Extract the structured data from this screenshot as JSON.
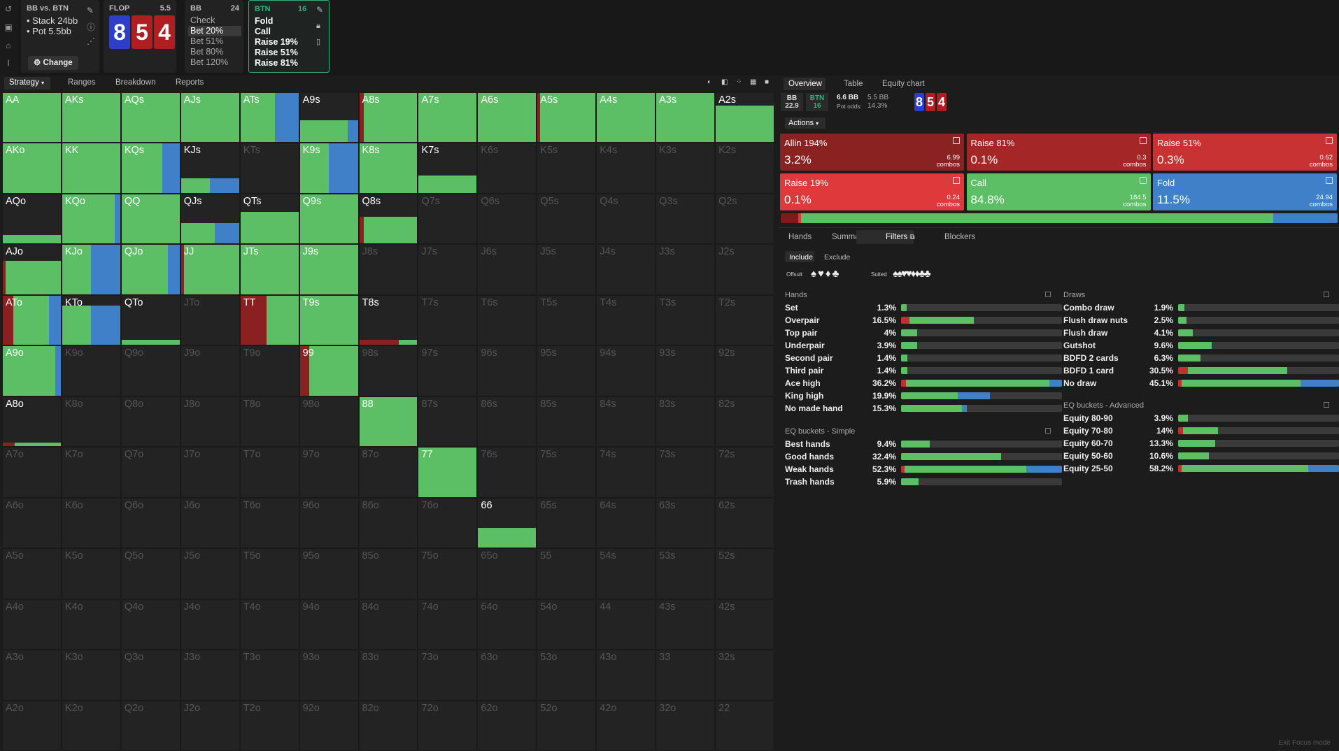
{
  "header": {
    "matchup": "BB vs. BTN",
    "stack": "Stack 24bb",
    "pot": "Pot 5.5bb",
    "change_label": "Change",
    "flop_label": "FLOP",
    "flop_pot": "5.5",
    "board": [
      "8",
      "5",
      "4"
    ],
    "bb_panel": {
      "title": "BB",
      "num": "24",
      "options": [
        "Check",
        "Bet 20%",
        "Bet 51%",
        "Bet 80%",
        "Bet 120%"
      ],
      "selected": "Bet 20%"
    },
    "btn_panel": {
      "title": "BTN",
      "num": "16",
      "options": [
        "Fold",
        "Call",
        "Raise 19%",
        "Raise 51%",
        "Raise 81%"
      ]
    }
  },
  "tabs": {
    "strategy": "Strategy",
    "ranges": "Ranges",
    "breakdown": "Breakdown",
    "reports": "Reports"
  },
  "colors": {
    "green": "#5cbf65",
    "blue": "#3f80c8",
    "red": "#8b2020",
    "dark_red": "#7a1c1c"
  },
  "grid": [
    [
      "AA",
      "AKs",
      "AQs",
      "AJs",
      "ATs",
      "A9s",
      "A8s",
      "A7s",
      "A6s",
      "A5s",
      "A4s",
      "A3s",
      "A2s"
    ],
    [
      "AKo",
      "KK",
      "KQs",
      "KJs",
      "KTs",
      "K9s",
      "K8s",
      "K7s",
      "K6s",
      "K5s",
      "K4s",
      "K3s",
      "K2s"
    ],
    [
      "AQo",
      "KQo",
      "QQ",
      "QJs",
      "QTs",
      "Q9s",
      "Q8s",
      "Q7s",
      "Q6s",
      "Q5s",
      "Q4s",
      "Q3s",
      "Q2s"
    ],
    [
      "AJo",
      "KJo",
      "QJo",
      "JJ",
      "JTs",
      "J9s",
      "J8s",
      "J7s",
      "J6s",
      "J5s",
      "J4s",
      "J3s",
      "J2s"
    ],
    [
      "ATo",
      "KTo",
      "QTo",
      "JTo",
      "TT",
      "T9s",
      "T8s",
      "T7s",
      "T6s",
      "T5s",
      "T4s",
      "T3s",
      "T2s"
    ],
    [
      "A9o",
      "K9o",
      "Q9o",
      "J9o",
      "T9o",
      "99",
      "98s",
      "97s",
      "96s",
      "95s",
      "94s",
      "93s",
      "92s"
    ],
    [
      "A8o",
      "K8o",
      "Q8o",
      "J8o",
      "T8o",
      "98o",
      "88",
      "87s",
      "86s",
      "85s",
      "84s",
      "83s",
      "82s"
    ],
    [
      "A7o",
      "K7o",
      "Q7o",
      "J7o",
      "T7o",
      "97o",
      "87o",
      "77",
      "76s",
      "75s",
      "74s",
      "73s",
      "72s"
    ],
    [
      "A6o",
      "K6o",
      "Q6o",
      "J6o",
      "T6o",
      "96o",
      "86o",
      "76o",
      "66",
      "65s",
      "64s",
      "63s",
      "62s"
    ],
    [
      "A5o",
      "K5o",
      "Q5o",
      "J5o",
      "T5o",
      "95o",
      "85o",
      "75o",
      "65o",
      "55",
      "54s",
      "53s",
      "52s"
    ],
    [
      "A4o",
      "K4o",
      "Q4o",
      "J4o",
      "T4o",
      "94o",
      "84o",
      "74o",
      "64o",
      "54o",
      "44",
      "43s",
      "42s"
    ],
    [
      "A3o",
      "K3o",
      "Q3o",
      "J3o",
      "T3o",
      "93o",
      "83o",
      "73o",
      "63o",
      "53o",
      "43o",
      "33",
      "32s"
    ],
    [
      "A2o",
      "K2o",
      "Q2o",
      "J2o",
      "T2o",
      "92o",
      "82o",
      "72o",
      "62o",
      "52o",
      "42o",
      "32o",
      "22"
    ]
  ],
  "right": {
    "tabs": [
      "Overview",
      "Table",
      "Equity chart"
    ],
    "pos_bb": "BB",
    "pos_bb_stack": "22.9",
    "pos_btn": "BTN",
    "pos_btn_stack": "16",
    "to_call": "6.6 BB",
    "pot_bb": "5.5 BB",
    "pot_odds_label": "Pot odds:",
    "pot_odds": "14.3%",
    "board": [
      "8",
      "5",
      "4"
    ],
    "actions_label": "Actions",
    "actions": [
      {
        "name": "Allin 194%",
        "pct": "3.2%",
        "combos": "6.99",
        "color": "#8b2222"
      },
      {
        "name": "Raise 81%",
        "pct": "0.1%",
        "combos": "0.3",
        "color": "#a52626"
      },
      {
        "name": "Raise 51%",
        "pct": "0.3%",
        "combos": "0.62",
        "color": "#c83232"
      },
      {
        "name": "Raise 19%",
        "pct": "0.1%",
        "combos": "0.24",
        "color": "#e0393c"
      },
      {
        "name": "Call",
        "pct": "84.8%",
        "combos": "184.5",
        "color": "#5cbf65"
      },
      {
        "name": "Fold",
        "pct": "11.5%",
        "combos": "24.94",
        "color": "#3f80c8"
      }
    ],
    "combos_label": "combos",
    "subtabs": [
      "Hands",
      "Summary",
      "Filters",
      "Blockers"
    ],
    "include": "Include",
    "exclude": "Exclude",
    "offsuit": "Offsuit",
    "suited": "Suited",
    "hands_header": "Hands",
    "hands": [
      {
        "label": "Set",
        "pct": "1.3%",
        "red": 0,
        "green": 0.035,
        "blue": 0
      },
      {
        "label": "Overpair",
        "pct": "16.5%",
        "red": 0.05,
        "green": 0.4,
        "blue": 0
      },
      {
        "label": "Top pair",
        "pct": "4%",
        "red": 0,
        "green": 0.1,
        "blue": 0
      },
      {
        "label": "Underpair",
        "pct": "3.9%",
        "red": 0,
        "green": 0.1,
        "blue": 0
      },
      {
        "label": "Second pair",
        "pct": "1.4%",
        "red": 0,
        "green": 0.04,
        "blue": 0
      },
      {
        "label": "Third pair",
        "pct": "1.4%",
        "red": 0,
        "green": 0.04,
        "blue": 0
      },
      {
        "label": "Ace high",
        "pct": "36.2%",
        "red": 0.03,
        "green": 0.89,
        "blue": 0.08
      },
      {
        "label": "King high",
        "pct": "19.9%",
        "red": 0,
        "green": 0.35,
        "blue": 0.2
      },
      {
        "label": "No made hand",
        "pct": "15.3%",
        "red": 0,
        "green": 0.38,
        "blue": 0.03
      }
    ],
    "eq_simple_header": "EQ buckets - Simple",
    "eq_simple": [
      {
        "label": "Best hands",
        "pct": "9.4%",
        "red": 0,
        "green": 0.18,
        "blue": 0
      },
      {
        "label": "Good hands",
        "pct": "32.4%",
        "red": 0,
        "green": 0.62,
        "blue": 0
      },
      {
        "label": "Weak hands",
        "pct": "52.3%",
        "red": 0.02,
        "green": 0.76,
        "blue": 0.22
      },
      {
        "label": "Trash hands",
        "pct": "5.9%",
        "red": 0,
        "green": 0.11,
        "blue": 0
      }
    ],
    "draws_header": "Draws",
    "draws": [
      {
        "label": "Combo draw",
        "pct": "1.9%",
        "red": 0,
        "green": 0.04,
        "blue": 0
      },
      {
        "label": "Flush draw nuts",
        "pct": "2.5%",
        "red": 0,
        "green": 0.05,
        "blue": 0
      },
      {
        "label": "Flush draw",
        "pct": "4.1%",
        "red": 0,
        "green": 0.09,
        "blue": 0
      },
      {
        "label": "Gutshot",
        "pct": "9.6%",
        "red": 0,
        "green": 0.21,
        "blue": 0
      },
      {
        "label": "BDFD 2 cards",
        "pct": "6.3%",
        "red": 0,
        "green": 0.14,
        "blue": 0
      },
      {
        "label": "BDFD 1 card",
        "pct": "30.5%",
        "red": 0.06,
        "green": 0.62,
        "blue": 0
      },
      {
        "label": "No draw",
        "pct": "45.1%",
        "red": 0.02,
        "green": 0.74,
        "blue": 0.24
      }
    ],
    "eq_adv_header": "EQ buckets - Advanced",
    "eq_adv": [
      {
        "label": "Equity 80-90",
        "pct": "3.9%",
        "red": 0,
        "green": 0.06,
        "blue": 0
      },
      {
        "label": "Equity 70-80",
        "pct": "14%",
        "red": 0.03,
        "green": 0.22,
        "blue": 0
      },
      {
        "label": "Equity 60-70",
        "pct": "13.3%",
        "red": 0,
        "green": 0.23,
        "blue": 0
      },
      {
        "label": "Equity 50-60",
        "pct": "10.6%",
        "red": 0,
        "green": 0.19,
        "blue": 0
      },
      {
        "label": "Equity 25-50",
        "pct": "58.2%",
        "red": 0.02,
        "green": 0.79,
        "blue": 0.19
      }
    ],
    "exit_focus": "Exit Focus mode"
  },
  "hand_strategy": {
    "AA": [
      0,
      1,
      0,
      1
    ],
    "AKs": [
      0,
      1,
      0,
      1
    ],
    "AQs": [
      0,
      1,
      0,
      1
    ],
    "AJs": [
      0,
      1,
      0,
      1
    ],
    "ATs": [
      0,
      0.6,
      0.4,
      1
    ],
    "A9s": [
      0,
      0.82,
      0.18,
      0.45
    ],
    "A8s": [
      0.08,
      0.92,
      0,
      1
    ],
    "A7s": [
      0,
      1,
      0,
      1
    ],
    "A6s": [
      0,
      1,
      0,
      1
    ],
    "A5s": [
      0.04,
      0.96,
      0,
      1
    ],
    "A4s": [
      0,
      1,
      0,
      1
    ],
    "A3s": [
      0,
      1,
      0,
      1
    ],
    "A2s": [
      0,
      1,
      0,
      0.75
    ],
    "AKo": [
      0,
      1,
      0,
      1
    ],
    "KK": [
      0,
      1,
      0,
      1
    ],
    "KQs": [
      0,
      0.7,
      0.3,
      1
    ],
    "KJs": [
      0,
      0.5,
      0.5,
      0.3
    ],
    "K9s": [
      0,
      0.5,
      0.5,
      1
    ],
    "K8s": [
      0,
      1,
      0,
      1
    ],
    "K7s": [
      0,
      1,
      0,
      0.35
    ],
    "AQo": [
      0,
      1,
      0,
      0.18
    ],
    "KQo": [
      0,
      0.9,
      0.1,
      1
    ],
    "QQ": [
      0,
      1,
      0,
      1
    ],
    "QJs": [
      0,
      0.58,
      0.42,
      0.42
    ],
    "QTs": [
      0,
      1,
      0,
      0.65
    ],
    "Q9s": [
      0,
      1,
      0,
      1
    ],
    "Q8s": [
      0.08,
      0.92,
      0,
      0.55
    ],
    "AJo": [
      0.05,
      0.95,
      0,
      0.68
    ],
    "KJo": [
      0,
      0.5,
      0.5,
      1
    ],
    "QJo": [
      0,
      0.8,
      0.2,
      1
    ],
    "JJ": [
      0.05,
      0.95,
      0,
      1
    ],
    "JTs": [
      0,
      1,
      0,
      1
    ],
    "J9s": [
      0,
      1,
      0,
      1
    ],
    "ATo": [
      0.18,
      0.62,
      0.2,
      1
    ],
    "KTo": [
      0,
      0.5,
      0.5,
      0.8
    ],
    "QTo": [
      0,
      1,
      0,
      0.1
    ],
    "TT": [
      0.45,
      0.55,
      0,
      1
    ],
    "T9s": [
      0,
      1,
      0,
      1
    ],
    "T8s": [
      0.68,
      0.32,
      0,
      0.1
    ],
    "A9o": [
      0,
      0.9,
      0.1,
      1
    ],
    "99": [
      0.16,
      0.84,
      0,
      1
    ],
    "A8o": [
      0.2,
      0.8,
      0,
      0.08
    ],
    "88": [
      0,
      1,
      0,
      1
    ],
    "77": [
      0,
      1,
      0,
      1
    ],
    "66": [
      0,
      1,
      0,
      0.4
    ]
  }
}
